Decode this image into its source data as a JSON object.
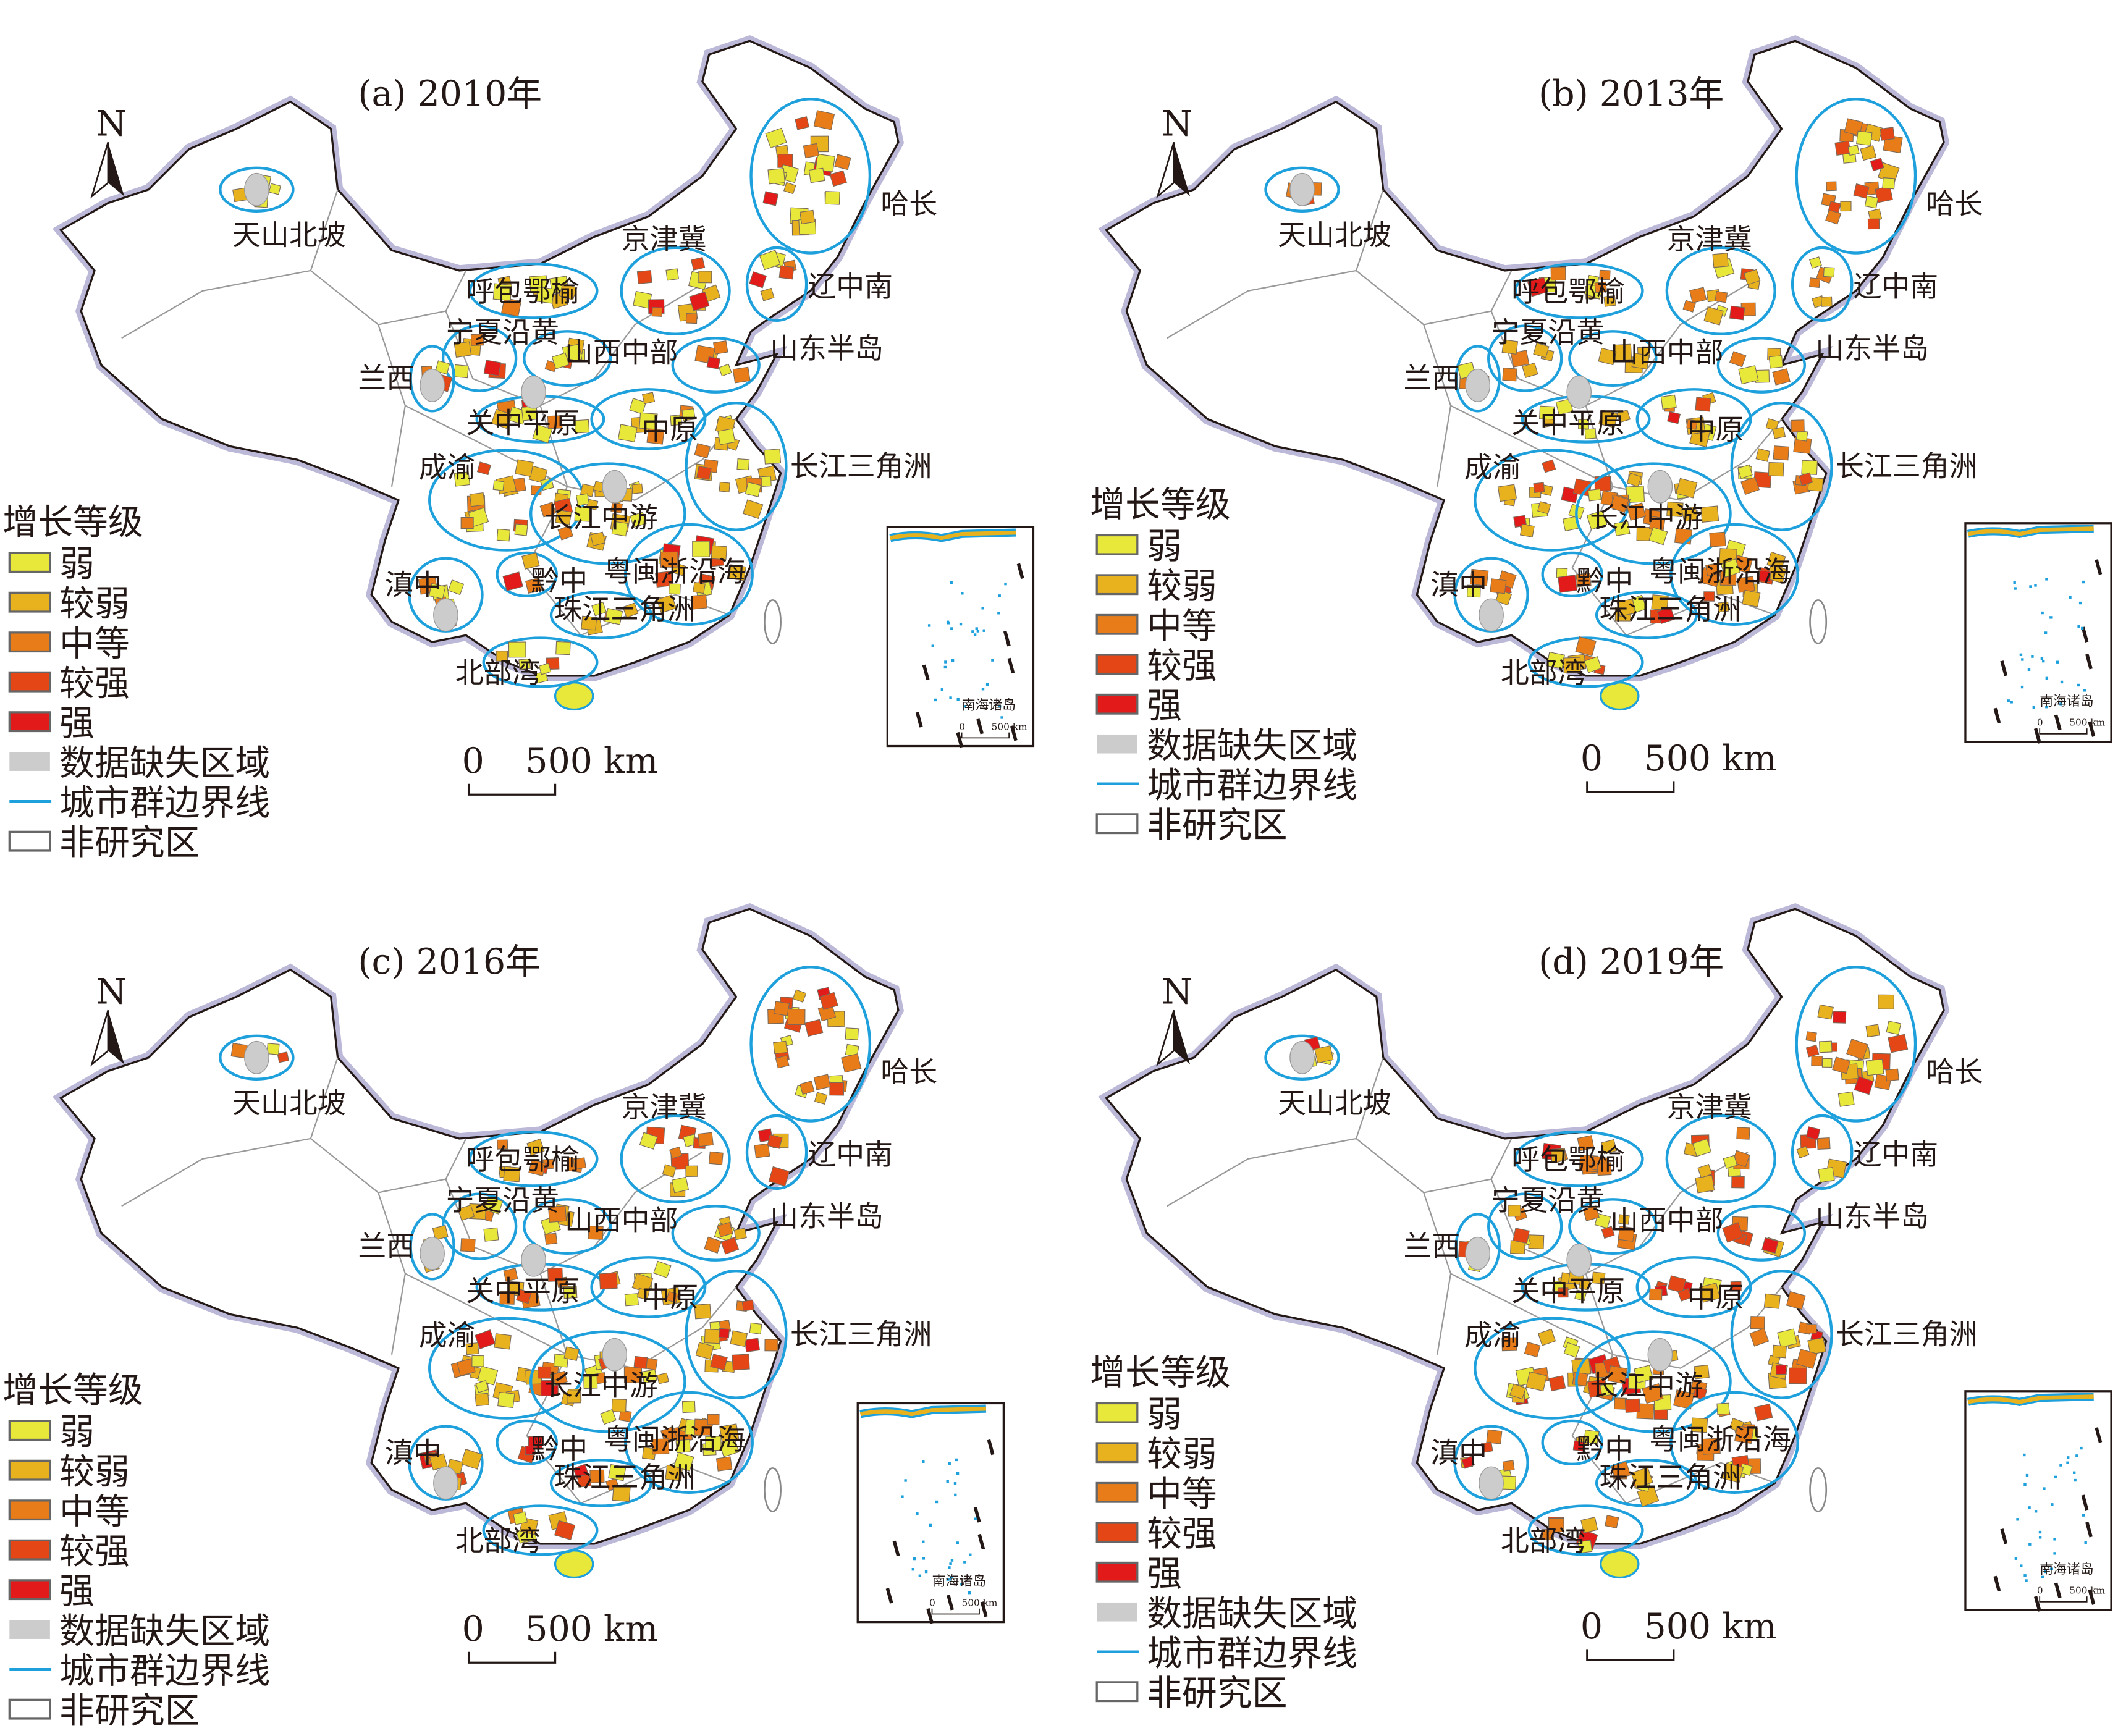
{
  "figure": {
    "panels": [
      {
        "title": "(a) 2010年"
      },
      {
        "title": "(b) 2013年"
      },
      {
        "title": "(c) 2016年"
      },
      {
        "title": "(d) 2019年"
      }
    ],
    "north_label": "N",
    "regions": [
      "天山北坡",
      "哈长",
      "京津冀",
      "辽中南",
      "呼包鄂榆",
      "宁夏沿黄",
      "山西中部",
      "山东半岛",
      "兰西",
      "关中平原",
      "中原",
      "成渝",
      "长江三角洲",
      "长江中游",
      "黔中",
      "粤闽浙沿海",
      "珠江三角洲",
      "滇中",
      "北部湾"
    ],
    "legend": {
      "title": "增长等级",
      "items": [
        {
          "label": "弱",
          "color": "#e8e83a"
        },
        {
          "label": "较弱",
          "color": "#e8b21e"
        },
        {
          "label": "中等",
          "color": "#e87c18"
        },
        {
          "label": "较强",
          "color": "#e54616"
        },
        {
          "label": "强",
          "color": "#e31a1a"
        },
        {
          "label": "数据缺失区域",
          "color": "#cccccc"
        },
        {
          "label": "城市群边界线",
          "color": "#1ea0dc"
        },
        {
          "label": "非研究区",
          "color": "#ffffff"
        }
      ]
    },
    "scale_bar": {
      "zero": "0",
      "distance": "500 km"
    },
    "inset": {
      "title": "南海诸岛",
      "zero": "0",
      "distance": "500 km"
    }
  }
}
